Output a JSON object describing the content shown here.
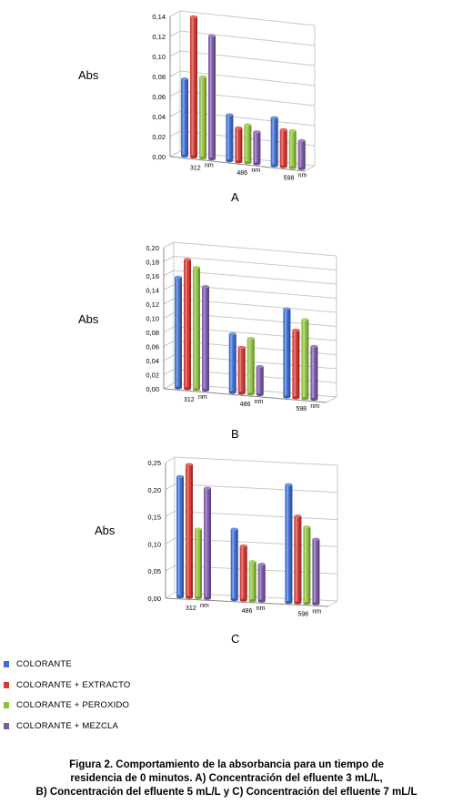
{
  "axis_label": "Abs",
  "unit": "nm",
  "colors": {
    "COLORANTE": "#3f6fd0",
    "COLORANTE + EXTRACTO": "#d23b35",
    "COLORANTE + PEROXIDO": "#8fc13f",
    "COLORANTE + MEZCLA": "#7d5aa8",
    "grid": "#c8c8c8",
    "axis": "#888888"
  },
  "legend": {
    "items": [
      "COLORANTE",
      "COLORANTE + EXTRACTO",
      "COLORANTE + PEROXIDO",
      "COLORANTE + MEZCLA"
    ]
  },
  "chart_data": [
    {
      "type": "bar",
      "panel": "A",
      "categories": [
        "312",
        "486",
        "598"
      ],
      "ylabel": "Abs",
      "ylim": [
        0,
        0.14
      ],
      "yticks": [
        "0,00",
        "0,02",
        "0,04",
        "0,06",
        "0,08",
        "0,10",
        "0,12",
        "0,14"
      ],
      "grid": true,
      "series": [
        {
          "name": "COLORANTE",
          "values": [
            0.077,
            0.046,
            0.048
          ]
        },
        {
          "name": "COLORANTE + EXTRACTO",
          "values": [
            0.14,
            0.034,
            0.037
          ]
        },
        {
          "name": "COLORANTE + PEROXIDO",
          "values": [
            0.081,
            0.038,
            0.037
          ]
        },
        {
          "name": "COLORANTE + MEZCLA",
          "values": [
            0.123,
            0.032,
            0.028
          ]
        }
      ]
    },
    {
      "type": "bar",
      "panel": "B",
      "categories": [
        "312",
        "486",
        "598"
      ],
      "ylabel": "Abs",
      "ylim": [
        0,
        0.2
      ],
      "yticks": [
        "0,00",
        "0,02",
        "0,04",
        "0,06",
        "0,08",
        "0,10",
        "0,12",
        "0,14",
        "0,16",
        "0,18",
        "0,20"
      ],
      "grid": true,
      "series": [
        {
          "name": "COLORANTE",
          "values": [
            0.157,
            0.083,
            0.125
          ]
        },
        {
          "name": "COLORANTE + EXTRACTO",
          "values": [
            0.183,
            0.065,
            0.096
          ]
        },
        {
          "name": "COLORANTE + PEROXIDO",
          "values": [
            0.173,
            0.079,
            0.112
          ]
        },
        {
          "name": "COLORANTE + MEZCLA",
          "values": [
            0.147,
            0.04,
            0.075
          ]
        }
      ]
    },
    {
      "type": "bar",
      "panel": "C",
      "categories": [
        "312",
        "486",
        "598"
      ],
      "ylabel": "Abs",
      "ylim": [
        0,
        0.25
      ],
      "yticks": [
        "0,00",
        "0,05",
        "0,10",
        "0,15",
        "0,20",
        "0,25"
      ],
      "grid": true,
      "series": [
        {
          "name": "COLORANTE",
          "values": [
            0.222,
            0.13,
            0.217
          ]
        },
        {
          "name": "COLORANTE + EXTRACTO",
          "values": [
            0.245,
            0.1,
            0.16
          ]
        },
        {
          "name": "COLORANTE + PEROXIDO",
          "values": [
            0.127,
            0.072,
            0.141
          ]
        },
        {
          "name": "COLORANTE + MEZCLA",
          "values": [
            0.203,
            0.068,
            0.119
          ]
        }
      ]
    }
  ],
  "caption": {
    "line1": "Figura 2. Comportamiento de la absorbancia para un tiempo de",
    "line2": "residencia de 0 minutos. A) Concentración del efluente 3 mL/L,",
    "line3": "B) Concentración del efluente 5 mL/L y C) Concentración del efluente 7 mL/L"
  }
}
